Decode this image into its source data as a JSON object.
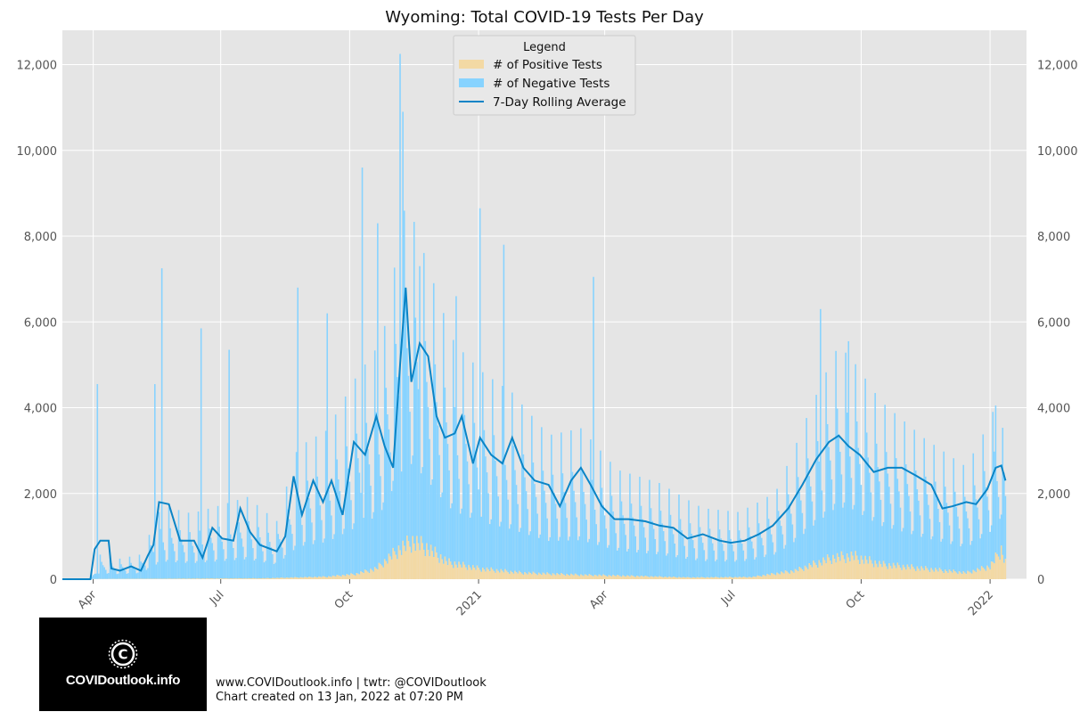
{
  "chart_data": {
    "type": "bar",
    "title": "Wyoming: Total COVID-19 Tests Per Day",
    "xlabel": "",
    "ylabel": "",
    "x_range": [
      "2020-03-10",
      "2022-01-27"
    ],
    "ylim": [
      0,
      12800
    ],
    "y_ticks": [
      0,
      2000,
      4000,
      6000,
      8000,
      10000,
      12000
    ],
    "y_tick_labels": [
      "0",
      "2,000",
      "4,000",
      "6,000",
      "8,000",
      "10,000",
      "12,000"
    ],
    "x_ticks": [
      "2020-04-01",
      "2020-07-01",
      "2020-10-01",
      "2021-01-01",
      "2021-04-01",
      "2021-07-01",
      "2021-10-01",
      "2022-01-01"
    ],
    "x_tick_labels": [
      "Apr",
      "Jul",
      "Oct",
      "2021",
      "Apr",
      "Jul",
      "Oct",
      "2022"
    ],
    "grid": true,
    "stacked": true,
    "legend_title": "Legend",
    "legend_position": "top-center",
    "series": [
      {
        "name": "# of Positive Tests",
        "kind": "bar",
        "color": "#f3d9a4"
      },
      {
        "name": "# of Negative Tests",
        "kind": "bar",
        "color": "#87d3ff"
      },
      {
        "name": "7-Day Rolling Average",
        "kind": "line",
        "color": "#0a84c6"
      }
    ],
    "rolling_average_points": [
      [
        "2020-03-10",
        0
      ],
      [
        "2020-03-30",
        0
      ],
      [
        "2020-04-02",
        700
      ],
      [
        "2020-04-06",
        900
      ],
      [
        "2020-04-12",
        900
      ],
      [
        "2020-04-14",
        250
      ],
      [
        "2020-04-20",
        200
      ],
      [
        "2020-04-28",
        300
      ],
      [
        "2020-05-05",
        200
      ],
      [
        "2020-05-10",
        550
      ],
      [
        "2020-05-14",
        800
      ],
      [
        "2020-05-18",
        1800
      ],
      [
        "2020-05-25",
        1750
      ],
      [
        "2020-06-02",
        900
      ],
      [
        "2020-06-12",
        900
      ],
      [
        "2020-06-18",
        500
      ],
      [
        "2020-06-25",
        1200
      ],
      [
        "2020-07-02",
        950
      ],
      [
        "2020-07-10",
        900
      ],
      [
        "2020-07-15",
        1650
      ],
      [
        "2020-07-22",
        1100
      ],
      [
        "2020-07-29",
        800
      ],
      [
        "2020-08-10",
        650
      ],
      [
        "2020-08-16",
        1000
      ],
      [
        "2020-08-22",
        2400
      ],
      [
        "2020-08-28",
        1500
      ],
      [
        "2020-09-05",
        2300
      ],
      [
        "2020-09-12",
        1800
      ],
      [
        "2020-09-18",
        2300
      ],
      [
        "2020-09-26",
        1500
      ],
      [
        "2020-10-04",
        3200
      ],
      [
        "2020-10-12",
        2900
      ],
      [
        "2020-10-20",
        3800
      ],
      [
        "2020-10-26",
        3100
      ],
      [
        "2020-11-01",
        2600
      ],
      [
        "2020-11-06",
        5000
      ],
      [
        "2020-11-10",
        6800
      ],
      [
        "2020-11-14",
        4600
      ],
      [
        "2020-11-20",
        5500
      ],
      [
        "2020-11-26",
        5200
      ],
      [
        "2020-12-02",
        3800
      ],
      [
        "2020-12-08",
        3300
      ],
      [
        "2020-12-15",
        3400
      ],
      [
        "2020-12-20",
        3800
      ],
      [
        "2020-12-28",
        2700
      ],
      [
        "2021-01-02",
        3300
      ],
      [
        "2021-01-10",
        2900
      ],
      [
        "2021-01-18",
        2700
      ],
      [
        "2021-01-25",
        3300
      ],
      [
        "2021-02-02",
        2600
      ],
      [
        "2021-02-10",
        2300
      ],
      [
        "2021-02-20",
        2200
      ],
      [
        "2021-02-28",
        1700
      ],
      [
        "2021-03-08",
        2300
      ],
      [
        "2021-03-15",
        2600
      ],
      [
        "2021-03-22",
        2200
      ],
      [
        "2021-03-30",
        1700
      ],
      [
        "2021-04-08",
        1400
      ],
      [
        "2021-04-18",
        1400
      ],
      [
        "2021-04-30",
        1350
      ],
      [
        "2021-05-10",
        1250
      ],
      [
        "2021-05-20",
        1200
      ],
      [
        "2021-05-30",
        950
      ],
      [
        "2021-06-10",
        1050
      ],
      [
        "2021-06-22",
        900
      ],
      [
        "2021-06-30",
        850
      ],
      [
        "2021-07-10",
        900
      ],
      [
        "2021-07-20",
        1050
      ],
      [
        "2021-07-30",
        1250
      ],
      [
        "2021-08-10",
        1650
      ],
      [
        "2021-08-20",
        2200
      ],
      [
        "2021-08-30",
        2800
      ],
      [
        "2021-09-08",
        3200
      ],
      [
        "2021-09-15",
        3350
      ],
      [
        "2021-09-22",
        3100
      ],
      [
        "2021-09-30",
        2900
      ],
      [
        "2021-10-10",
        2500
      ],
      [
        "2021-10-20",
        2600
      ],
      [
        "2021-10-30",
        2600
      ],
      [
        "2021-11-10",
        2400
      ],
      [
        "2021-11-20",
        2200
      ],
      [
        "2021-11-28",
        1650
      ],
      [
        "2021-12-05",
        1700
      ],
      [
        "2021-12-15",
        1800
      ],
      [
        "2021-12-22",
        1750
      ],
      [
        "2021-12-30",
        2100
      ],
      [
        "2022-01-05",
        2600
      ],
      [
        "2022-01-09",
        2650
      ],
      [
        "2022-01-12",
        2300
      ]
    ],
    "negative_envelope_points": [
      [
        "2020-03-10",
        0
      ],
      [
        "2020-03-30",
        0
      ],
      [
        "2020-04-06",
        300
      ],
      [
        "2020-04-20",
        250
      ],
      [
        "2020-05-05",
        300
      ],
      [
        "2020-05-20",
        900
      ],
      [
        "2020-06-10",
        800
      ],
      [
        "2020-07-01",
        900
      ],
      [
        "2020-07-20",
        1000
      ],
      [
        "2020-08-10",
        700
      ],
      [
        "2020-08-25",
        1600
      ],
      [
        "2020-09-15",
        1800
      ],
      [
        "2020-10-05",
        2400
      ],
      [
        "2020-10-25",
        2800
      ],
      [
        "2020-11-10",
        4200
      ],
      [
        "2020-11-25",
        3500
      ],
      [
        "2020-12-15",
        2700
      ],
      [
        "2021-01-05",
        2400
      ],
      [
        "2021-01-25",
        2200
      ],
      [
        "2021-02-20",
        1700
      ],
      [
        "2021-03-15",
        1800
      ],
      [
        "2021-04-10",
        1300
      ],
      [
        "2021-05-10",
        1150
      ],
      [
        "2021-06-10",
        850
      ],
      [
        "2021-07-05",
        800
      ],
      [
        "2021-08-01",
        1000
      ],
      [
        "2021-08-25",
        1900
      ],
      [
        "2021-09-15",
        2600
      ],
      [
        "2021-10-15",
        2000
      ],
      [
        "2021-11-15",
        1600
      ],
      [
        "2021-12-15",
        1300
      ],
      [
        "2022-01-05",
        1900
      ],
      [
        "2022-01-12",
        1400
      ]
    ],
    "positive_envelope_points": [
      [
        "2020-03-10",
        0
      ],
      [
        "2020-08-01",
        20
      ],
      [
        "2020-09-15",
        60
      ],
      [
        "2020-10-05",
        120
      ],
      [
        "2020-10-20",
        250
      ],
      [
        "2020-11-05",
        700
      ],
      [
        "2020-11-15",
        900
      ],
      [
        "2020-11-25",
        750
      ],
      [
        "2020-12-10",
        400
      ],
      [
        "2021-01-01",
        250
      ],
      [
        "2021-02-01",
        150
      ],
      [
        "2021-03-15",
        100
      ],
      [
        "2021-04-15",
        80
      ],
      [
        "2021-06-01",
        40
      ],
      [
        "2021-07-15",
        50
      ],
      [
        "2021-08-15",
        200
      ],
      [
        "2021-09-10",
        500
      ],
      [
        "2021-09-25",
        550
      ],
      [
        "2021-10-15",
        350
      ],
      [
        "2021-11-15",
        250
      ],
      [
        "2021-12-15",
        150
      ],
      [
        "2022-01-01",
        300
      ],
      [
        "2022-01-09",
        700
      ],
      [
        "2022-01-12",
        400
      ]
    ],
    "notable_daily_totals": [
      [
        "2020-04-04",
        4550
      ],
      [
        "2020-05-15",
        4550
      ],
      [
        "2020-05-20",
        7250
      ],
      [
        "2020-06-17",
        5850
      ],
      [
        "2020-07-07",
        5350
      ],
      [
        "2020-08-25",
        6800
      ],
      [
        "2020-09-15",
        6200
      ],
      [
        "2020-10-10",
        9600
      ],
      [
        "2020-10-21",
        8300
      ],
      [
        "2020-11-06",
        12250
      ],
      [
        "2020-11-08",
        10900
      ],
      [
        "2020-11-20",
        7300
      ],
      [
        "2020-12-16",
        6600
      ],
      [
        "2021-01-02",
        8650
      ],
      [
        "2021-01-19",
        7800
      ],
      [
        "2021-03-24",
        7050
      ],
      [
        "2021-09-02",
        6300
      ],
      [
        "2021-09-22",
        5550
      ],
      [
        "2022-01-05",
        4050
      ]
    ]
  },
  "footer": {
    "line1": "www.COVIDoutlook.info | twtr: @COVIDoutlook",
    "line2": "Chart created on 13 Jan, 2022 at 07:20 PM"
  },
  "logo": {
    "text": "COVIDoutlook.info",
    "background": "#000000"
  }
}
